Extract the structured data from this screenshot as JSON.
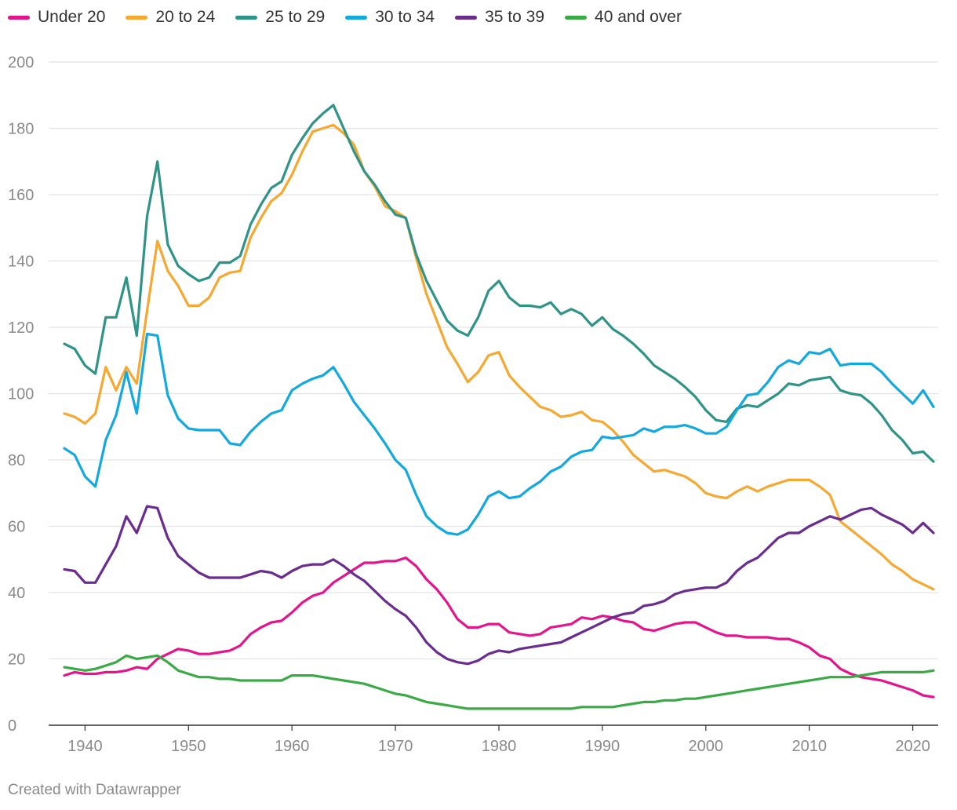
{
  "chart_data": {
    "type": "line",
    "title": "",
    "xlabel": "",
    "ylabel": "",
    "xlim": [
      1938,
      2022
    ],
    "ylim": [
      0,
      200
    ],
    "yticks": [
      0,
      20,
      40,
      60,
      80,
      100,
      120,
      140,
      160,
      180,
      200
    ],
    "xticks": [
      1940,
      1950,
      1960,
      1970,
      1980,
      1990,
      2000,
      2010,
      2020
    ],
    "grid": true,
    "legend_position": "top",
    "x": [
      1938,
      1939,
      1940,
      1941,
      1942,
      1943,
      1944,
      1945,
      1946,
      1947,
      1948,
      1949,
      1950,
      1951,
      1952,
      1953,
      1954,
      1955,
      1956,
      1957,
      1958,
      1959,
      1960,
      1961,
      1962,
      1963,
      1964,
      1965,
      1966,
      1967,
      1968,
      1969,
      1970,
      1971,
      1972,
      1973,
      1974,
      1975,
      1976,
      1977,
      1978,
      1979,
      1980,
      1981,
      1982,
      1983,
      1984,
      1985,
      1986,
      1987,
      1988,
      1989,
      1990,
      1991,
      1992,
      1993,
      1994,
      1995,
      1996,
      1997,
      1998,
      1999,
      2000,
      2001,
      2002,
      2003,
      2004,
      2005,
      2006,
      2007,
      2008,
      2009,
      2010,
      2011,
      2012,
      2013,
      2014,
      2015,
      2016,
      2017,
      2018,
      2019,
      2020,
      2021,
      2022
    ],
    "series": [
      {
        "name": "Under 20",
        "color": "#e6148c",
        "values": [
          15,
          16,
          15.5,
          15.5,
          16,
          16,
          16.5,
          17.5,
          17,
          20,
          21.5,
          23,
          22.5,
          21.5,
          21.5,
          22,
          22.5,
          24,
          27.5,
          29.5,
          31,
          31.5,
          34,
          37,
          39,
          40,
          43,
          45,
          47,
          49,
          49,
          49.5,
          49.5,
          50.5,
          48,
          44,
          41,
          37,
          32,
          29.5,
          29.5,
          30.5,
          30.5,
          28,
          27.5,
          27,
          27.5,
          29.5,
          30,
          30.5,
          32.5,
          32,
          33,
          32.5,
          31.5,
          31,
          29,
          28.5,
          29.5,
          30.5,
          31,
          31,
          29.5,
          28,
          27,
          27,
          26.5,
          26.5,
          26.5,
          26,
          26,
          25,
          23.5,
          21,
          20,
          17,
          15.5,
          14.5,
          14,
          13.5,
          12.5,
          11.5,
          10.5,
          9,
          8.5
        ]
      },
      {
        "name": "20 to 24",
        "color": "#f7a830",
        "values": [
          94,
          93,
          91,
          94,
          108,
          101,
          108,
          103,
          125,
          146,
          137,
          132.5,
          126.5,
          126.5,
          129,
          135,
          136.5,
          137,
          147,
          153,
          158,
          160.5,
          166,
          173,
          179,
          180,
          181,
          178.5,
          175,
          167,
          162.5,
          156.5,
          155,
          153,
          141,
          130,
          122,
          114,
          109,
          103.5,
          106.5,
          111.5,
          112.5,
          105.5,
          102,
          99,
          96,
          95,
          93,
          93.5,
          94.5,
          92,
          91.5,
          89,
          85.5,
          81.5,
          79,
          76.5,
          77,
          76,
          75,
          73,
          70,
          69,
          68.5,
          70.5,
          72,
          70.5,
          72,
          73,
          74,
          74,
          74,
          72,
          69.5,
          61.5,
          59,
          56.5,
          54,
          51.5,
          48.5,
          46.5,
          44,
          42.5,
          41
        ]
      },
      {
        "name": "25 to 29",
        "color": "#2e9487",
        "values": [
          115,
          113.5,
          108.5,
          106,
          123,
          123,
          135,
          117.5,
          153.5,
          170,
          145,
          138.5,
          136,
          134,
          135,
          139.5,
          139.5,
          141.5,
          151,
          157,
          162,
          164,
          172,
          177,
          181.5,
          184.5,
          187,
          180,
          173,
          167,
          163,
          158,
          154,
          153,
          142,
          134,
          128,
          122,
          119,
          117.5,
          123,
          131,
          134,
          129,
          126.5,
          126.5,
          126,
          127.5,
          124,
          125.5,
          124,
          120.5,
          123,
          119.5,
          117.5,
          115,
          112,
          108.5,
          106.5,
          104.5,
          102,
          99,
          95,
          92,
          91.5,
          95.5,
          96.5,
          96,
          98,
          100,
          103,
          102.5,
          104,
          104.5,
          105,
          101,
          100,
          99.5,
          97,
          93.5,
          89,
          86,
          82,
          82.5,
          79.5
        ]
      },
      {
        "name": "30 to 34",
        "color": "#12a9e1",
        "values": [
          83.5,
          81.5,
          75,
          72,
          86,
          93.5,
          106.5,
          94,
          118,
          117.5,
          99.5,
          92.5,
          89.5,
          89,
          89,
          89,
          85,
          84.5,
          88.5,
          91.5,
          94,
          95,
          101,
          103,
          104.5,
          105.5,
          108,
          103,
          97.5,
          93.5,
          89.5,
          85,
          80,
          77,
          69.5,
          63,
          60,
          58,
          57.5,
          59,
          63.5,
          69,
          70.5,
          68.5,
          69,
          71.5,
          73.5,
          76.5,
          78,
          81,
          82.5,
          83,
          87,
          86.5,
          87,
          87.5,
          89.5,
          88.5,
          90,
          90,
          90.5,
          89.5,
          88,
          88,
          90,
          95,
          99.5,
          100,
          103.5,
          108,
          110,
          109,
          112.5,
          112,
          113.5,
          108.5,
          109,
          109,
          109,
          106.5,
          103,
          100,
          97,
          101,
          96
        ]
      },
      {
        "name": "35 to 39",
        "color": "#6a2c8f",
        "values": [
          47,
          46.5,
          43,
          43,
          48.5,
          54,
          63,
          58,
          66,
          65.5,
          56.5,
          51,
          48.5,
          46,
          44.5,
          44.5,
          44.5,
          44.5,
          45.5,
          46.5,
          46,
          44.5,
          46.5,
          48,
          48.5,
          48.5,
          50,
          48,
          45.5,
          43.5,
          40.5,
          37.5,
          35,
          33,
          29.5,
          25,
          22,
          20,
          19,
          18.5,
          19.5,
          21.5,
          22.5,
          22,
          23,
          23.5,
          24,
          24.5,
          25,
          26.5,
          28,
          29.5,
          31,
          32.5,
          33.5,
          34,
          36,
          36.5,
          37.5,
          39.5,
          40.5,
          41,
          41.5,
          41.5,
          43,
          46.5,
          49,
          50.5,
          53.5,
          56.5,
          58,
          58,
          60,
          61.5,
          63,
          62,
          63.5,
          65,
          65.5,
          63.5,
          62,
          60.5,
          58,
          61,
          58
        ]
      },
      {
        "name": "40 and over",
        "color": "#3aaa45",
        "values": [
          17.5,
          17,
          16.5,
          17,
          18,
          19,
          21,
          20,
          20.5,
          21,
          19,
          16.5,
          15.5,
          14.5,
          14.5,
          14,
          14,
          13.5,
          13.5,
          13.5,
          13.5,
          13.5,
          15,
          15,
          15,
          14.5,
          14,
          13.5,
          13,
          12.5,
          11.5,
          10.5,
          9.5,
          9,
          8,
          7,
          6.5,
          6,
          5.5,
          5,
          5,
          5,
          5,
          5,
          5,
          5,
          5,
          5,
          5,
          5,
          5.5,
          5.5,
          5.5,
          5.5,
          6,
          6.5,
          7,
          7,
          7.5,
          7.5,
          8,
          8,
          8.5,
          9,
          9.5,
          10,
          10.5,
          11,
          11.5,
          12,
          12.5,
          13,
          13.5,
          14,
          14.5,
          14.5,
          14.5,
          15,
          15.5,
          16,
          16,
          16,
          16,
          16,
          16.5
        ]
      }
    ]
  },
  "footer": {
    "credit": "Created with Datawrapper"
  }
}
